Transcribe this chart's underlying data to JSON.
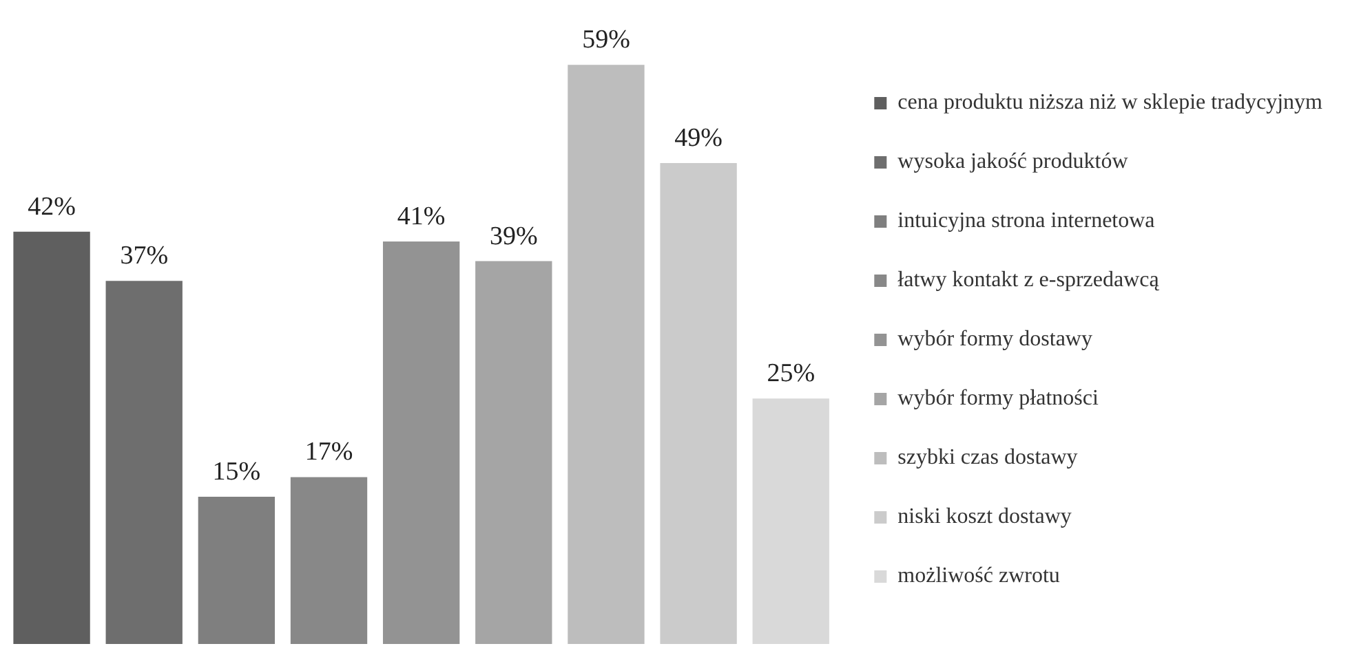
{
  "chart_data": {
    "type": "bar",
    "categories": [
      null
    ],
    "series": [
      {
        "name": "cena produktu niższa niż w sklepie tradycyjnym",
        "color": "#5f5f5f",
        "values": [
          42
        ],
        "value_labels": [
          "42%"
        ]
      },
      {
        "name": "wysoka jakość produktów",
        "color": "#6e6e6e",
        "values": [
          37
        ],
        "value_labels": [
          "37%"
        ]
      },
      {
        "name": "intuicyjna strona internetowa",
        "color": "#7f7f7f",
        "values": [
          15
        ],
        "value_labels": [
          "15%"
        ]
      },
      {
        "name": "łatwy kontakt z e-sprzedawcą",
        "color": "#888888",
        "values": [
          17
        ],
        "value_labels": [
          "17%"
        ]
      },
      {
        "name": "wybór formy dostawy",
        "color": "#939393",
        "values": [
          41
        ],
        "value_labels": [
          "41%"
        ]
      },
      {
        "name": "wybór formy płatności",
        "color": "#a5a5a5",
        "values": [
          39
        ],
        "value_labels": [
          "39%"
        ]
      },
      {
        "name": "szybki czas dostawy",
        "color": "#bdbdbd",
        "values": [
          59
        ],
        "value_labels": [
          "59%"
        ]
      },
      {
        "name": "niski koszt dostawy",
        "color": "#cbcbcb",
        "values": [
          49
        ],
        "value_labels": [
          "49%"
        ]
      },
      {
        "name": "możliwość zwrotu",
        "color": "#d9d9d9",
        "values": [
          25
        ],
        "value_labels": [
          "25%"
        ]
      }
    ],
    "legend": "right"
  }
}
